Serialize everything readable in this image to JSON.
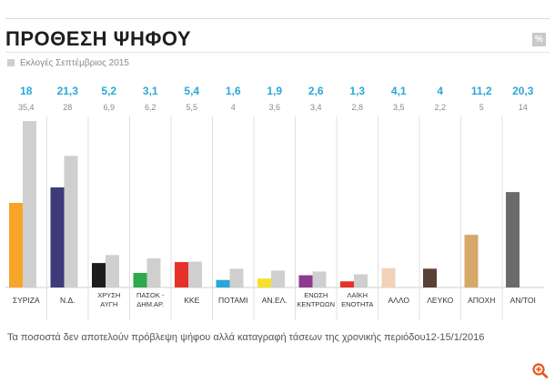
{
  "title": "ΠΡΟΘΕΣΗ ΨΗΦΟΥ",
  "percent_icon_symbol": "%",
  "legend": {
    "label": "Εκλογές Σεπτέμβριος 2015",
    "color": "#cfcfcf"
  },
  "footnote": "Τα ποσοστά δεν αποτελούν πρόβλεψη ψήφου αλλά καταγραφή τάσεων της χρονικής περιόδου12-15/1/2016",
  "colors": {
    "value_label": "#2aa7d8",
    "previous_label": "#8a8a8a",
    "previous_bar": "#cfcfcf",
    "zoom_icon": "#e8541a"
  },
  "chart_data": {
    "type": "bar",
    "title": "ΠΡΟΘΕΣΗ ΨΗΦΟΥ",
    "categories": [
      [
        "ΣΥΡΙΖΑ"
      ],
      [
        "Ν.Δ."
      ],
      [
        "ΧΡΥΣΗ",
        "ΑΥΓΗ"
      ],
      [
        "ΠΑΣΟΚ -",
        "ΔΗΜ.ΑΡ."
      ],
      [
        "ΚΚΕ"
      ],
      [
        "ΠΟΤΑΜΙ"
      ],
      [
        "ΑΝ.ΕΛ."
      ],
      [
        "ΕΝΩΣΗ",
        "ΚΕΝΤΡΩΩΝ"
      ],
      [
        "ΛΑΪΚΗ",
        "ΕΝΟΤΗΤΑ"
      ],
      [
        "ΑΛΛΟ"
      ],
      [
        "ΛΕΥΚΟ"
      ],
      [
        "ΑΠΟΧΗ"
      ],
      [
        "ΑΝ/ΤΟΙ"
      ]
    ],
    "series": [
      {
        "values": [
          18,
          21.3,
          5.2,
          3.1,
          5.4,
          1.6,
          1.9,
          2.6,
          1.3,
          4.1,
          4,
          11.2,
          20.3
        ],
        "labels": [
          "18",
          "21,3",
          "5,2",
          "3,1",
          "5,4",
          "1,6",
          "1,9",
          "2,6",
          "1,3",
          "4,1",
          "4",
          "11,2",
          "20,3"
        ],
        "colors": [
          "#f7a528",
          "#3d3b7a",
          "#1c1c1c",
          "#2eaa4a",
          "#e8302a",
          "#2aa7d8",
          "#f6e02a",
          "#8e3a8e",
          "#e8302a",
          "#f2d2b8",
          "#5b4035",
          "#d6a869",
          "#6b6b6b"
        ]
      },
      {
        "name": "Εκλογές Σεπτέμβριος 2015",
        "values": [
          35.4,
          28,
          6.9,
          6.2,
          5.5,
          4,
          3.6,
          3.4,
          2.8,
          3.5,
          2.2,
          5,
          14
        ],
        "labels": [
          "35,4",
          "28",
          "6,9",
          "6,2",
          "5,5",
          "4",
          "3,6",
          "3,4",
          "2,8",
          "3,5",
          "2,2",
          "5",
          "14"
        ]
      }
    ],
    "show_previous": [
      true,
      true,
      true,
      true,
      true,
      true,
      true,
      true,
      true,
      false,
      false,
      false,
      false
    ],
    "ylim": [
      0,
      36
    ],
    "grid": false,
    "legend_position": "top-left"
  }
}
